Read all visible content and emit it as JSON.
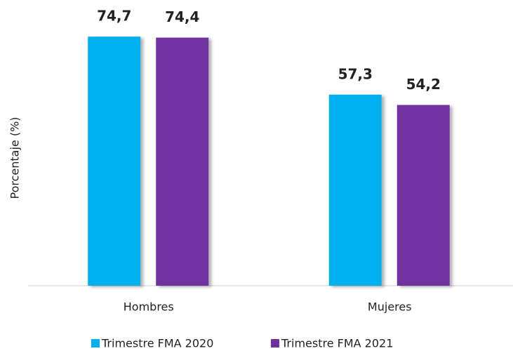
{
  "chart_data": {
    "type": "bar",
    "y_label": "Porcentaje (%)",
    "categories": [
      "Hombres",
      "Mujeres"
    ],
    "series": [
      {
        "name": "Trimestre FMA 2020",
        "color": "#00b0f0",
        "values": [
          74.7,
          57.3
        ],
        "value_labels": [
          "74,7",
          "57,3"
        ]
      },
      {
        "name": "Trimestre FMA 2021",
        "color": "#7030a0",
        "values": [
          74.4,
          54.2
        ],
        "value_labels": [
          "74,4",
          "54,2"
        ]
      }
    ],
    "ylim": [
      0,
      80
    ]
  }
}
